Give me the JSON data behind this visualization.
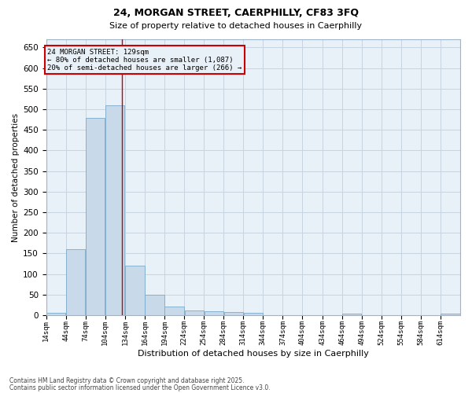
{
  "title_line1": "24, MORGAN STREET, CAERPHILLY, CF83 3FQ",
  "title_line2": "Size of property relative to detached houses in Caerphilly",
  "xlabel": "Distribution of detached houses by size in Caerphilly",
  "ylabel": "Number of detached properties",
  "footnote_line1": "Contains HM Land Registry data © Crown copyright and database right 2025.",
  "footnote_line2": "Contains public sector information licensed under the Open Government Licence v3.0.",
  "bar_color": "#c8daea",
  "bar_edge_color": "#7aaac8",
  "grid_color": "#c8d4e0",
  "background_color": "#ffffff",
  "plot_bg_color": "#e8f0f8",
  "property_size": 129,
  "property_label": "24 MORGAN STREET: 129sqm",
  "annotation_line2": "← 80% of detached houses are smaller (1,087)",
  "annotation_line3": "20% of semi-detached houses are larger (266) →",
  "annotation_box_color": "#cc0000",
  "vline_color": "#cc0000",
  "bins": [
    14,
    44,
    74,
    104,
    134,
    164,
    194,
    224,
    254,
    284,
    314,
    344,
    374,
    404,
    434,
    464,
    494,
    524,
    554,
    584,
    614
  ],
  "bin_labels": [
    "14sqm",
    "44sqm",
    "74sqm",
    "104sqm",
    "134sqm",
    "164sqm",
    "194sqm",
    "224sqm",
    "254sqm",
    "284sqm",
    "314sqm",
    "344sqm",
    "374sqm",
    "404sqm",
    "434sqm",
    "464sqm",
    "494sqm",
    "524sqm",
    "554sqm",
    "584sqm",
    "614sqm"
  ],
  "counts": [
    5,
    160,
    480,
    510,
    120,
    50,
    20,
    12,
    10,
    7,
    5,
    0,
    0,
    0,
    0,
    3,
    0,
    0,
    0,
    0,
    3
  ],
  "ylim": [
    0,
    670
  ],
  "yticks": [
    0,
    50,
    100,
    150,
    200,
    250,
    300,
    350,
    400,
    450,
    500,
    550,
    600,
    650
  ]
}
